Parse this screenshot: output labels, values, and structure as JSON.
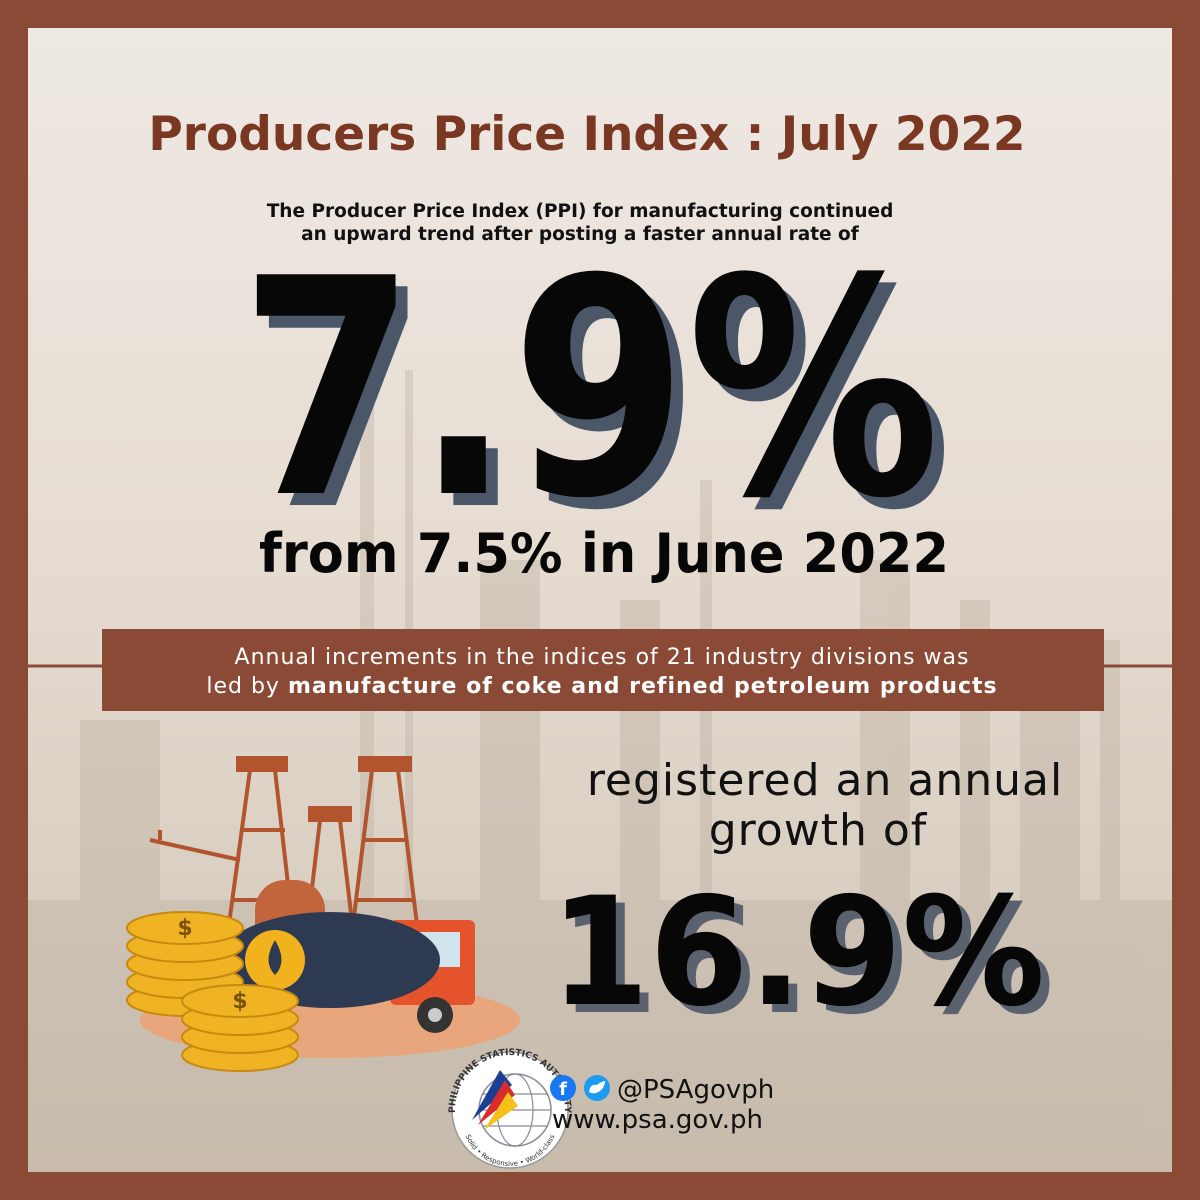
{
  "header": {
    "title": "Producers Price Index : July 2022",
    "intro": [
      "The Producer Price Index (PPI) for manufacturing continued",
      "an upward trend after posting a faster annual rate of"
    ]
  },
  "headline": {
    "rate": "7.9%",
    "comparison": "from 7.5% in June 2022"
  },
  "banner": {
    "line1": "Annual increments in the indices of 21 industry divisions was",
    "line2_plain": "led by ",
    "line2_bold": "manufacture of coke and refined petroleum products"
  },
  "highlight": {
    "lead": [
      "registered an annual",
      "growth of"
    ],
    "rate": "16.9%"
  },
  "footer": {
    "social_handle": "@PSAgovph",
    "website": "www.psa.gov.ph",
    "logo_name": "PHILIPPINE STATISTICS AUTHORITY",
    "logo_motto": "Solid • Responsive • World-class"
  }
}
